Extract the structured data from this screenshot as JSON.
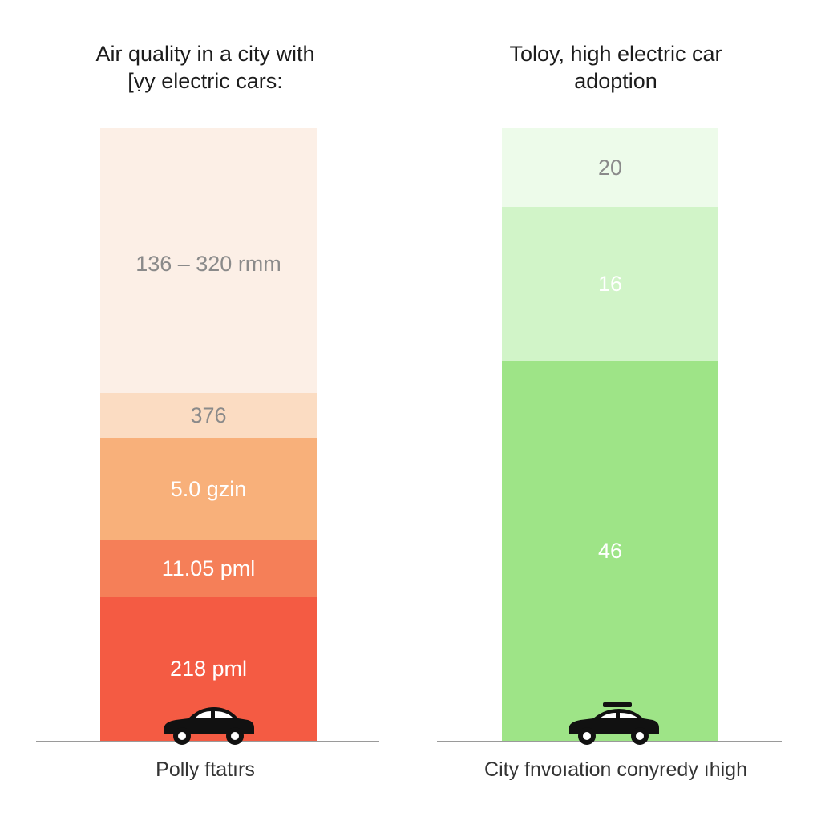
{
  "chart_data": [
    {
      "type": "bar",
      "title": "Air quality in a city with\n[ṿy electric cars:",
      "xlabel": "Polly ftatırs",
      "segments": [
        {
          "label": "136 – 320 rmm",
          "color": "#fcefe6"
        },
        {
          "label": "376",
          "color": "#fbdcc2"
        },
        {
          "label": "5.0 gzin",
          "color": "#f8b07a"
        },
        {
          "label": "11.05 pml",
          "color": "#f57f58"
        },
        {
          "label": "218 pml",
          "color": "#f45b43"
        }
      ]
    },
    {
      "type": "bar",
      "title": "Toloy, high electric car\nadoption",
      "xlabel": "City fnvoıation conyredy ıhigh",
      "segments": [
        {
          "label": "20",
          "value": 20,
          "color": "#edfbea"
        },
        {
          "label": "16",
          "value": 16,
          "color": "#d1f4c8"
        },
        {
          "label": "46",
          "value": 46,
          "color": "#9ee487"
        }
      ]
    }
  ],
  "icons": {
    "vehicle": "car-icon"
  }
}
